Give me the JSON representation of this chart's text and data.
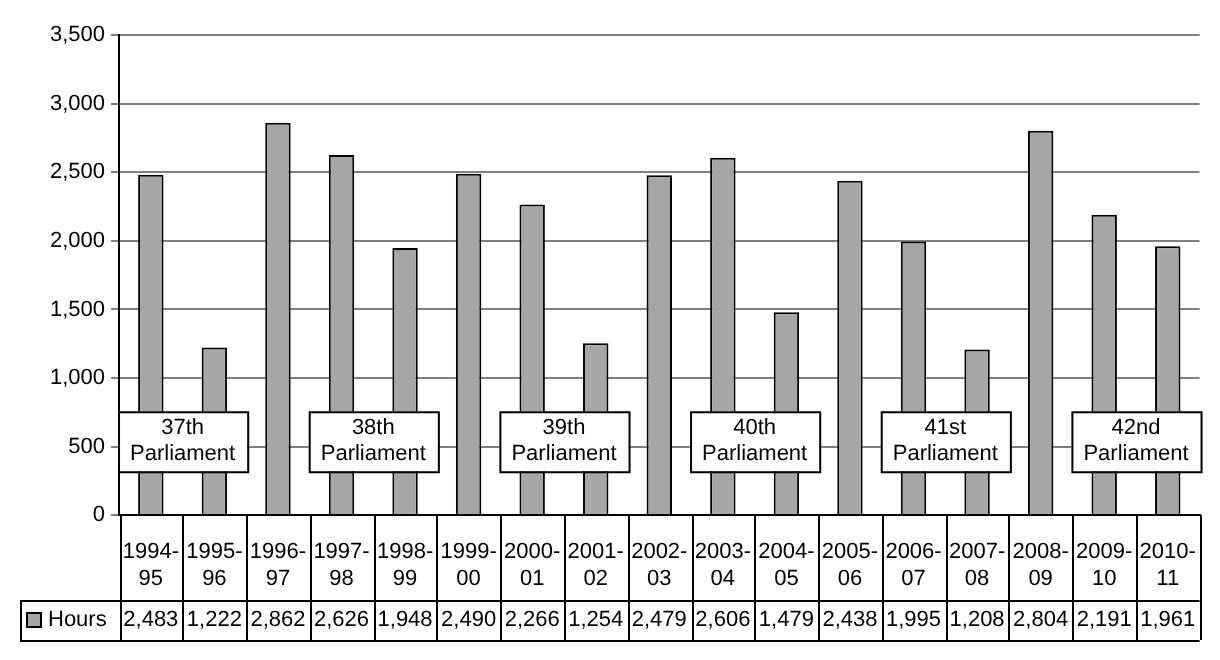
{
  "chart_data": {
    "type": "bar",
    "categories": [
      "1994-95",
      "1995-96",
      "1996-97",
      "1997-98",
      "1998-99",
      "1999-00",
      "2000-01",
      "2001-02",
      "2002-03",
      "2003-04",
      "2004-05",
      "2005-06",
      "2006-07",
      "2007-08",
      "2008-09",
      "2009-10",
      "2010-11"
    ],
    "series": [
      {
        "name": "Hours",
        "color": "#a6a6a6",
        "values": [
          2483,
          1222,
          2862,
          2626,
          1948,
          2490,
          2266,
          1254,
          2479,
          2606,
          1479,
          2438,
          1995,
          1208,
          2804,
          2191,
          1961
        ],
        "value_labels": [
          "2,483",
          "1,222",
          "2,862",
          "2,626",
          "1,948",
          "2,490",
          "2,266",
          "1,254",
          "2,479",
          "2,606",
          "1,479",
          "2,438",
          "1,995",
          "1,208",
          "2,804",
          "2,191",
          "1,961"
        ]
      }
    ],
    "ylim": [
      0,
      3500
    ],
    "yticks": [
      0,
      500,
      {
        "value": 1000,
        "label": "1,000"
      },
      {
        "value": 1500,
        "label": "1,500"
      },
      {
        "value": 2000,
        "label": "2,000"
      },
      {
        "value": 2500,
        "label": "2,500"
      },
      {
        "value": 3000,
        "label": "3,000"
      },
      {
        "value": 3500,
        "label": "3,500"
      }
    ],
    "grid": "y",
    "legend": "bottom",
    "annotations": [
      "37th Parliament",
      "38th Parliament",
      "39th Parliament",
      "40th Parliament",
      "41st Parliament",
      "42nd Parliament"
    ]
  }
}
